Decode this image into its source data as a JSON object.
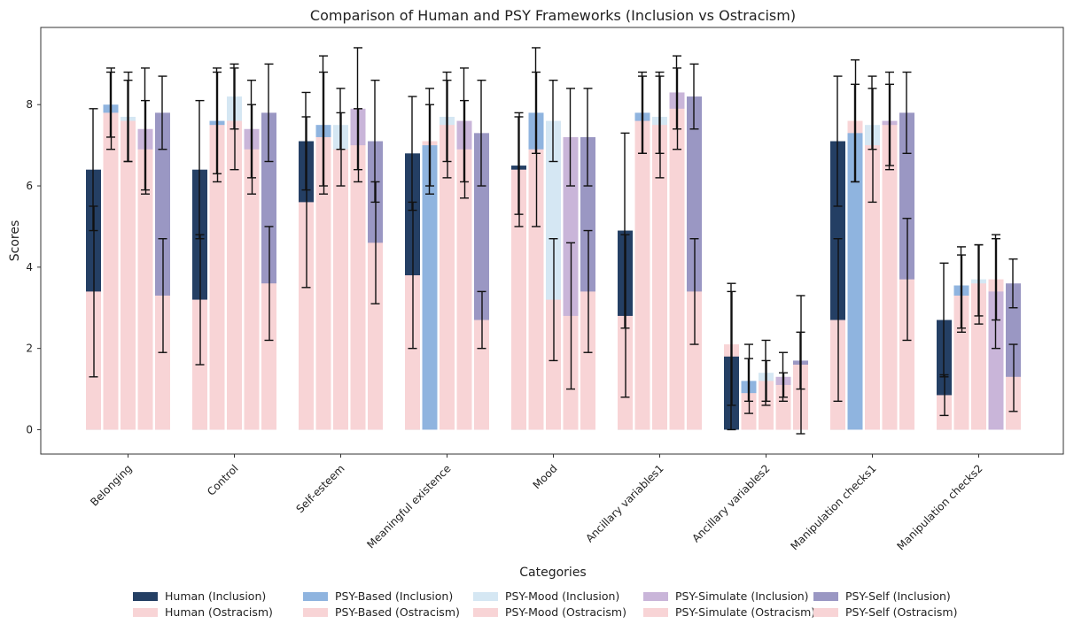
{
  "chart_data": {
    "type": "bar",
    "title": "Comparison of Human and PSY Frameworks (Inclusion vs Ostracism)",
    "xlabel": "Categories",
    "ylabel": "Scores",
    "ylim": [
      -0.6,
      9.9
    ],
    "yticks": [
      0,
      2,
      4,
      6,
      8
    ],
    "grid": false,
    "legend_position": "bottom",
    "categories": [
      "Belonging",
      "Control",
      "Self-esteem",
      "Meaningful existence",
      "Mood",
      "Ancillary variables1",
      "Ancillary variables2",
      "Manipulation checks1",
      "Manipulation checks2"
    ],
    "series": [
      {
        "name": "Human (Inclusion)",
        "color": "#243f64",
        "values": [
          6.4,
          6.4,
          7.1,
          6.8,
          6.5,
          4.9,
          1.8,
          7.1,
          2.7
        ],
        "error_low": [
          4.9,
          4.7,
          5.9,
          5.4,
          5.3,
          2.5,
          0.0,
          5.5,
          1.3
        ],
        "error_high": [
          7.9,
          8.1,
          8.3,
          8.2,
          7.7,
          7.3,
          3.6,
          8.7,
          4.1
        ]
      },
      {
        "name": "Human (Ostracism)",
        "color": "#f8d4d6",
        "values": [
          3.4,
          3.2,
          5.6,
          3.8,
          6.4,
          2.8,
          2.1,
          2.7,
          0.85
        ],
        "error_low": [
          1.3,
          1.6,
          3.5,
          2.0,
          5.0,
          0.8,
          0.6,
          0.7,
          0.35
        ],
        "error_high": [
          5.5,
          4.8,
          7.7,
          5.6,
          7.8,
          4.8,
          3.4,
          4.7,
          1.35
        ]
      },
      {
        "name": "PSY-Based (Inclusion)",
        "color": "#8fb4df",
        "values": [
          8.0,
          7.6,
          7.5,
          7.0,
          7.8,
          7.8,
          1.2,
          7.3,
          3.55
        ],
        "error_low": [
          7.2,
          6.3,
          6.0,
          5.8,
          6.8,
          6.8,
          0.7,
          6.1,
          2.5
        ],
        "error_high": [
          8.8,
          8.9,
          9.2,
          8.4,
          9.4,
          8.8,
          1.75,
          8.5,
          4.5
        ]
      },
      {
        "name": "PSY-Based (Ostracism)",
        "color": "#f8d4d6",
        "values": [
          7.8,
          7.5,
          7.2,
          7.1,
          6.9,
          7.6,
          0.9,
          7.6,
          3.3
        ],
        "error_low": [
          6.9,
          6.1,
          5.8,
          6.0,
          5.0,
          6.8,
          0.4,
          6.1,
          2.4
        ],
        "error_high": [
          8.9,
          8.8,
          8.8,
          8.0,
          8.8,
          8.7,
          2.1,
          9.1,
          4.3
        ]
      },
      {
        "name": "PSY-Mood (Inclusion)",
        "color": "#d5e7f3",
        "values": [
          7.7,
          8.2,
          7.5,
          7.7,
          7.6,
          7.7,
          1.4,
          7.5,
          3.7
        ],
        "error_low": [
          6.6,
          7.4,
          6.9,
          6.6,
          6.6,
          6.8,
          0.6,
          6.9,
          2.8
        ],
        "error_high": [
          8.6,
          9.0,
          8.4,
          8.8,
          8.6,
          8.8,
          2.2,
          8.7,
          4.55
        ]
      },
      {
        "name": "PSY-Mood (Ostracism)",
        "color": "#f8d4d6",
        "values": [
          7.6,
          7.6,
          6.9,
          7.5,
          3.2,
          7.5,
          1.2,
          7.0,
          3.6
        ],
        "error_low": [
          6.6,
          6.4,
          6.0,
          6.2,
          1.7,
          6.2,
          0.7,
          5.6,
          2.6
        ],
        "error_high": [
          8.8,
          8.9,
          7.8,
          8.6,
          4.7,
          8.7,
          1.7,
          8.4,
          4.55
        ]
      },
      {
        "name": "PSY-Simulate (Inclusion)",
        "color": "#c9b5d9",
        "values": [
          7.4,
          7.4,
          7.9,
          7.6,
          7.2,
          8.3,
          1.3,
          7.6,
          3.4
        ],
        "error_low": [
          5.9,
          6.2,
          6.4,
          6.1,
          6.0,
          7.4,
          0.7,
          6.4,
          2.0
        ],
        "error_high": [
          8.9,
          8.6,
          9.4,
          8.9,
          8.4,
          9.2,
          1.9,
          8.8,
          4.8
        ]
      },
      {
        "name": "PSY-Simulate (Ostracism)",
        "color": "#f8d4d6",
        "values": [
          6.9,
          6.9,
          7.0,
          6.9,
          2.8,
          7.9,
          1.1,
          7.5,
          3.7
        ],
        "error_low": [
          5.8,
          5.8,
          6.1,
          5.7,
          1.0,
          6.9,
          0.8,
          6.5,
          2.7
        ],
        "error_high": [
          8.1,
          8.0,
          7.9,
          8.1,
          4.6,
          8.9,
          1.4,
          8.5,
          4.7
        ]
      },
      {
        "name": "PSY-Self (Inclusion)",
        "color": "#9a97c3",
        "values": [
          7.8,
          7.8,
          7.1,
          7.3,
          7.2,
          8.2,
          1.7,
          7.8,
          3.6
        ],
        "error_low": [
          6.9,
          6.6,
          5.6,
          6.0,
          6.0,
          7.4,
          1.0,
          6.8,
          3.0
        ],
        "error_high": [
          8.7,
          9.0,
          8.6,
          8.6,
          8.4,
          9.0,
          2.4,
          8.8,
          4.2
        ]
      },
      {
        "name": "PSY-Self (Ostracism)",
        "color": "#f8d4d6",
        "values": [
          3.3,
          3.6,
          4.6,
          2.7,
          3.4,
          3.4,
          1.6,
          3.7,
          1.3
        ],
        "error_low": [
          1.9,
          2.2,
          3.1,
          2.0,
          1.9,
          2.1,
          -0.1,
          2.2,
          0.45
        ],
        "error_high": [
          4.7,
          5.0,
          6.1,
          3.4,
          4.9,
          4.7,
          3.3,
          5.2,
          2.1
        ]
      }
    ]
  }
}
